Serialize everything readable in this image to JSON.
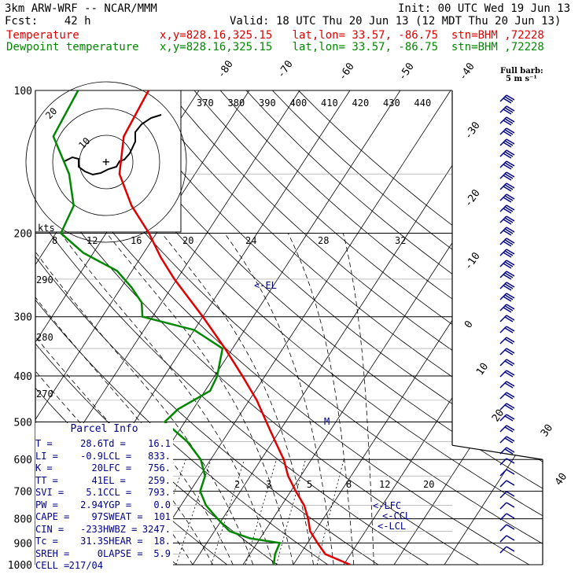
{
  "header": {
    "model": "3km ARW-WRF -- NCAR/MMM",
    "init": "Init: 00 UTC Wed 19 Jun 13",
    "fcst": "Fcst:    42 h",
    "valid": "Valid: 18 UTC Thu 20 Jun 13 (12 MDT Thu 20 Jun 13)",
    "temp_label": "Temperature",
    "temp_loc": "x,y=828.16,325.15   lat,lon= 33.57, -86.75  stn=BHM ,72228",
    "dew_label": "Dewpoint temperature",
    "dew_loc": "x,y=828.16,325.15   lat,lon= 33.57, -86.75  stn=BHM ,72228",
    "barb_note_1": "Full barb:",
    "barb_note_2": "5 m s⁻¹"
  },
  "colors": {
    "temperature": "#e00000",
    "dewpoint": "#008800",
    "hodograph": "#000000",
    "parcel": "#00008b",
    "grid": "#000000"
  },
  "chart_data": {
    "type": "line",
    "title": "3km ARW-WRF -- NCAR/MMM",
    "xlabel": "",
    "ylabel": "",
    "pressure_levels": [
      100,
      200,
      300,
      400,
      500,
      600,
      700,
      800,
      900,
      1000
    ],
    "skew_temp_labels": [
      "-80",
      "-70",
      "-60",
      "-50",
      "-40",
      "-30",
      "-20",
      "-10",
      "0",
      "10",
      "20",
      "30",
      "40"
    ],
    "theta_labels_top": [
      "370",
      "380",
      "390",
      "400",
      "410",
      "420",
      "430",
      "440"
    ],
    "theta_labels_left": [
      "290",
      "280",
      "270"
    ],
    "mixing_ratio_labels": [
      "2",
      "3",
      "5",
      "8",
      "12",
      "20"
    ],
    "hodo_speed_labels": [
      "8",
      "12",
      "16",
      "20",
      "24",
      "28",
      "32"
    ],
    "hodo_unit": "kts",
    "level_markers": [
      "<-EL",
      "<-LFC",
      "<-CCL",
      "<-LCL",
      "M"
    ],
    "series": [
      {
        "name": "Temperature",
        "points": [
          [
            1000,
            31.3
          ],
          [
            950,
            25.0
          ],
          [
            900,
            22.0
          ],
          [
            850,
            19.0
          ],
          [
            800,
            17.0
          ],
          [
            750,
            14.5
          ],
          [
            700,
            11.0
          ],
          [
            650,
            7.5
          ],
          [
            600,
            4.5
          ],
          [
            550,
            0.5
          ],
          [
            500,
            -3.8
          ],
          [
            450,
            -8.5
          ],
          [
            400,
            -14.5
          ],
          [
            350,
            -21.5
          ],
          [
            300,
            -30.0
          ],
          [
            250,
            -40.5
          ],
          [
            225,
            -46.0
          ],
          [
            200,
            -51.5
          ],
          [
            175,
            -58.5
          ],
          [
            150,
            -65.0
          ],
          [
            125,
            -69.0
          ],
          [
            100,
            -70.0
          ]
        ]
      },
      {
        "name": "Dewpoint temperature",
        "points": [
          [
            1000,
            16.1
          ],
          [
            950,
            15.0
          ],
          [
            900,
            14.5
          ],
          [
            880,
            8.0
          ],
          [
            850,
            3.0
          ],
          [
            800,
            -1.0
          ],
          [
            750,
            -5.0
          ],
          [
            700,
            -8.0
          ],
          [
            650,
            -9.0
          ],
          [
            600,
            -12.0
          ],
          [
            550,
            -17.0
          ],
          [
            500,
            -24.0
          ],
          [
            470,
            -23.0
          ],
          [
            430,
            -19.0
          ],
          [
            400,
            -19.5
          ],
          [
            350,
            -22.0
          ],
          [
            320,
            -30.0
          ],
          [
            300,
            -42.0
          ],
          [
            280,
            -44.0
          ],
          [
            260,
            -48.0
          ],
          [
            240,
            -53.0
          ],
          [
            220,
            -62.0
          ],
          [
            200,
            -69.0
          ],
          [
            175,
            -70.0
          ],
          [
            150,
            -75.0
          ],
          [
            125,
            -83.0
          ],
          [
            100,
            -84.0
          ]
        ]
      }
    ],
    "ylim": [
      1000,
      100
    ],
    "xlim_at_1000hPa": [
      -25,
      40
    ],
    "pressure_scale": "log"
  },
  "parcel_info": {
    "title": "Parcel Info",
    "rows": [
      [
        "T",
        "28.6",
        "Td",
        "16.1"
      ],
      [
        "LI",
        "-0.9",
        "LCL",
        "833."
      ],
      [
        "K",
        "20",
        "LFC",
        "756."
      ],
      [
        "TT",
        "41",
        "EL",
        "259."
      ],
      [
        "SVI",
        "5.1",
        "CCL",
        "793."
      ],
      [
        "PW",
        "2.94",
        "YGP",
        "0.0"
      ],
      [
        "CAPE",
        "97",
        "SWEAT",
        "101"
      ],
      [
        "CIN",
        "-233",
        "HWBZ",
        "3247."
      ],
      [
        "Tc",
        "31.3",
        "SHEAR",
        "18."
      ],
      [
        "SREH",
        "0",
        "LAPSE",
        "5.9"
      ],
      [
        "CELL",
        "217/04",
        "",
        ""
      ]
    ]
  }
}
